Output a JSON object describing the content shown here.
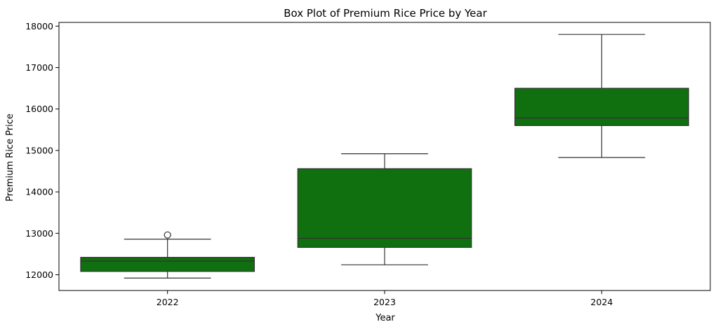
{
  "chart_data": {
    "type": "box",
    "title": "Box Plot of Premium Rice Price by Year",
    "xlabel": "Year",
    "ylabel": "Premium Rice Price",
    "categories": [
      "2022",
      "2023",
      "2024"
    ],
    "boxes": [
      {
        "category": "2022",
        "whisker_low": 11920,
        "q1": 12080,
        "median": 12330,
        "q3": 12420,
        "whisker_high": 12860,
        "outliers": [
          12960
        ]
      },
      {
        "category": "2023",
        "whisker_low": 12240,
        "q1": 12660,
        "median": 12880,
        "q3": 14560,
        "whisker_high": 14920,
        "outliers": []
      },
      {
        "category": "2024",
        "whisker_low": 14830,
        "q1": 15600,
        "median": 15780,
        "q3": 16500,
        "whisker_high": 17800,
        "outliers": []
      }
    ],
    "ylim": [
      11620,
      18090
    ],
    "yticks": [
      12000,
      13000,
      14000,
      15000,
      16000,
      17000,
      18000
    ],
    "box_color": "#107010",
    "line_color": "#333333",
    "grid": false,
    "legend": false
  }
}
